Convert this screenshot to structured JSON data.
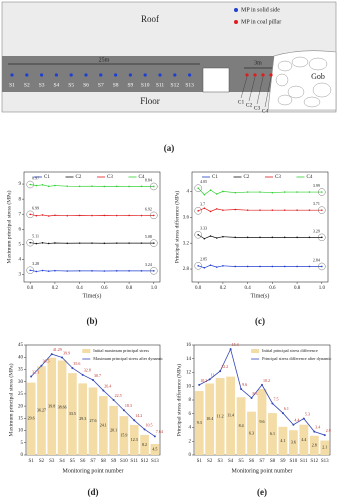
{
  "diagram": {
    "caption": "(a)",
    "roof": "Roof",
    "floor": "Floor",
    "gob": "Gob",
    "legend": [
      "MP in solid side",
      "MP in coal pillar"
    ],
    "solid_span": "25m",
    "pillar_span": "3m",
    "solid_points": [
      "S1",
      "S2",
      "S3",
      "S4",
      "S5",
      "S6",
      "S7",
      "S8",
      "S9",
      "S10",
      "S11",
      "S12",
      "S13"
    ],
    "pillar_points": [
      "C1",
      "C2",
      "C3",
      "C4"
    ]
  },
  "chart_data": [
    {
      "type": "line",
      "caption": "(b)",
      "xlabel": "Time(s)",
      "ylabel": "Maximum principal stress (MPa)",
      "x": [
        0,
        0.05,
        0.1,
        0.15,
        0.2,
        0.3,
        0.4,
        0.5,
        0.6,
        0.7,
        0.8,
        0.9,
        1.0
      ],
      "xlim": [
        -0.05,
        1.05
      ],
      "xticks": [
        {
          "value": 0,
          "label": "0.0"
        },
        0.2,
        0.4,
        0.6,
        0.8,
        {
          "value": 1,
          "label": "1.0"
        }
      ],
      "ylim": [
        2.5,
        9.8
      ],
      "yticks": [
        3,
        4,
        5,
        6,
        7,
        8,
        9
      ],
      "series": [
        {
          "name": "C1",
          "color": "#1f3fd1",
          "values": [
            3.28,
            3.2,
            3.26,
            3.22,
            3.25,
            3.23,
            3.24,
            3.24,
            3.23,
            3.24,
            3.24,
            3.24,
            3.24
          ]
        },
        {
          "name": "C2",
          "color": "#111111",
          "values": [
            5.11,
            5.05,
            5.1,
            5.06,
            5.09,
            5.07,
            5.08,
            5.08,
            5.07,
            5.08,
            5.08,
            5.08,
            5.08
          ]
        },
        {
          "name": "C3",
          "color": "#e01b1b",
          "values": [
            6.99,
            6.9,
            6.95,
            6.88,
            6.93,
            6.9,
            6.92,
            6.91,
            6.92,
            6.91,
            6.92,
            6.91,
            6.92
          ]
        },
        {
          "name": "C4",
          "color": "#2fd12f",
          "values": [
            8.97,
            8.9,
            8.95,
            8.85,
            8.9,
            8.86,
            8.85,
            8.86,
            8.84,
            8.85,
            8.84,
            8.85,
            8.84
          ]
        }
      ]
    },
    {
      "type": "line",
      "caption": "(c)",
      "xlabel": "Time(s)",
      "ylabel": "Principal stress difference (MPa)",
      "x": [
        0,
        0.05,
        0.1,
        0.15,
        0.2,
        0.3,
        0.4,
        0.5,
        0.6,
        0.7,
        0.8,
        0.9,
        1.0
      ],
      "xlim": [
        -0.05,
        1.05
      ],
      "xticks": [
        {
          "value": 0,
          "label": "0.0"
        },
        0.2,
        0.4,
        0.6,
        0.8,
        {
          "value": 1,
          "label": "1.0"
        }
      ],
      "ylim": [
        2.6,
        4.3
      ],
      "yticks": [
        2.8,
        3.2,
        3.6,
        4.0
      ],
      "series": [
        {
          "name": "C1",
          "color": "#1f3fd1",
          "values": [
            2.85,
            2.82,
            2.86,
            2.83,
            2.85,
            2.84,
            2.84,
            2.84,
            2.84,
            2.84,
            2.84,
            2.84,
            2.84
          ]
        },
        {
          "name": "C2",
          "color": "#111111",
          "values": [
            3.33,
            3.27,
            3.31,
            3.28,
            3.3,
            3.29,
            3.29,
            3.29,
            3.29,
            3.29,
            3.29,
            3.29,
            3.29
          ]
        },
        {
          "name": "C3",
          "color": "#e01b1b",
          "values": [
            3.7,
            3.74,
            3.69,
            3.73,
            3.71,
            3.72,
            3.71,
            3.71,
            3.71,
            3.71,
            3.71,
            3.71,
            3.71
          ]
        },
        {
          "name": "C4",
          "color": "#2fd12f",
          "values": [
            4.05,
            3.95,
            4.02,
            3.96,
            4.0,
            3.98,
            3.99,
            3.99,
            3.98,
            3.99,
            3.99,
            3.99,
            3.99
          ]
        }
      ]
    },
    {
      "type": "combo",
      "caption": "(d)",
      "xlabel": "Monitoring point number",
      "ylabel": "Maximum principal stress (MPa)",
      "categories": [
        "S1",
        "S2",
        "S3",
        "S4",
        "S5",
        "S6",
        "S7",
        "S8",
        "S9",
        "S10",
        "S11",
        "S12",
        "S13"
      ],
      "ylim": [
        0,
        45
      ],
      "yticks": [
        0,
        5,
        10,
        15,
        20,
        25,
        30,
        35,
        40,
        45
      ],
      "series": [
        {
          "name": "Initial maximum principal stress",
          "kind": "bar",
          "color": "#f3dca6",
          "values": [
            29.6,
            36.27,
            39.8,
            38.66,
            33.5,
            29.3,
            27.6,
            24.1,
            20.1,
            15.9,
            12.3,
            8.2,
            4.5
          ]
        },
        {
          "name": "Maximum principal stress after dynamic",
          "kind": "line",
          "color": "#3346b8",
          "values": [
            32.1,
            36.5,
            41.29,
            39.9,
            35.6,
            32.8,
            30.7,
            26.4,
            22.5,
            18.3,
            14.2,
            10.5,
            7.64
          ]
        }
      ]
    },
    {
      "type": "combo",
      "caption": "(e)",
      "xlabel": "Monitoring point number",
      "ylabel": "Principal stress difference (MPa)",
      "categories": [
        "S1",
        "S2",
        "S3",
        "S4",
        "S5",
        "S6",
        "S7",
        "S8",
        "S9",
        "S10",
        "S11",
        "S12",
        "S13"
      ],
      "ylim": [
        0,
        16
      ],
      "yticks": [
        0,
        2,
        4,
        6,
        8,
        10,
        12,
        14,
        16
      ],
      "series": [
        {
          "name": "Initial principal stress difference",
          "kind": "bar",
          "color": "#f3dca6",
          "values": [
            9.3,
            10.4,
            11.2,
            11.4,
            8.4,
            6.3,
            9.6,
            6.1,
            4.1,
            3.6,
            4.4,
            2.8,
            2.1
          ]
        },
        {
          "name": "Principal stress difference after dynamic",
          "kind": "line",
          "color": "#3346b8",
          "values": [
            10.2,
            11.0,
            12.2,
            15.4,
            9.6,
            8.3,
            10.2,
            7.5,
            6.1,
            4.4,
            5.3,
            3.4,
            2.9
          ]
        }
      ]
    }
  ]
}
